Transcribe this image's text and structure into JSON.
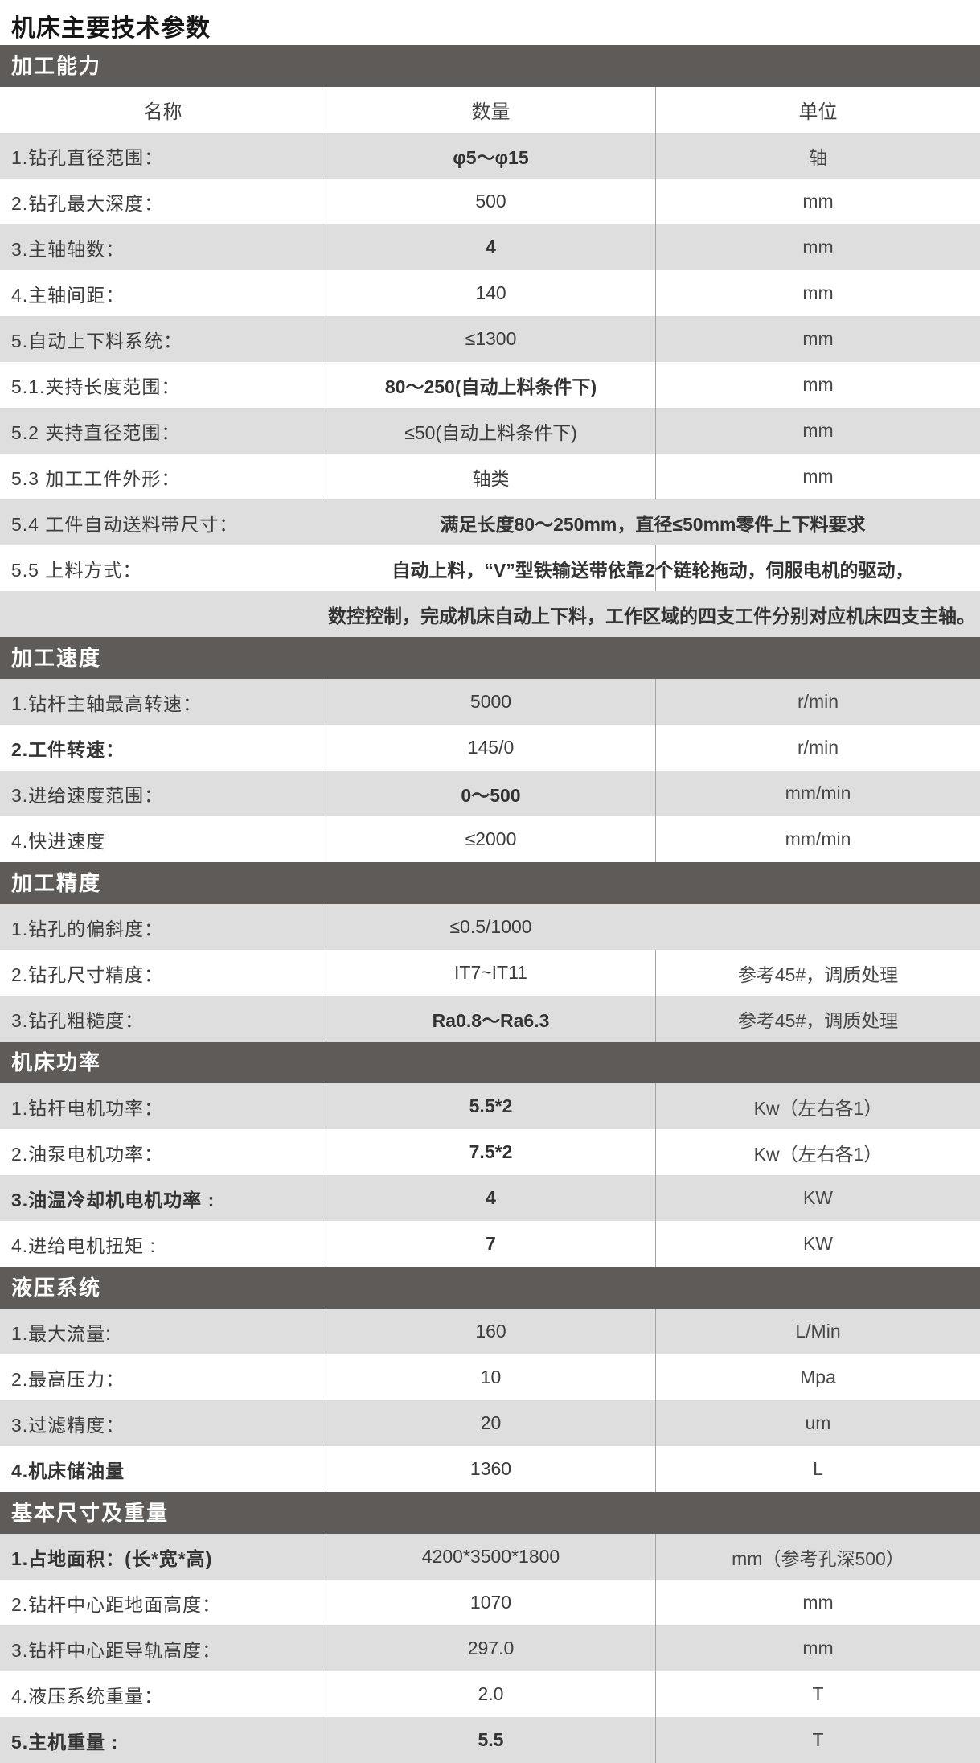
{
  "title": "机床主要技术参数",
  "colors": {
    "section_bar": "#5f5b58",
    "stripe": "#dedede",
    "divider": "#a3a3a3"
  },
  "table": {
    "columns": [
      "名称",
      "数量",
      "单位"
    ],
    "sections": [
      {
        "heading": "加工能力",
        "rows": [
          {
            "label": "1.钻孔直径范围：",
            "value": "φ5～φ15",
            "unit": "轴",
            "vb": true
          },
          {
            "label": "2.钻孔最大深度：",
            "value": "500",
            "unit": "mm"
          },
          {
            "label": "3.主轴轴数：",
            "value": "4",
            "unit": "mm",
            "vb": true
          },
          {
            "label": "4.主轴间距：",
            "value": "140",
            "unit": "mm"
          },
          {
            "label": "5.自动上下料系统：",
            "value": "≤1300",
            "unit": "mm"
          },
          {
            "label": "5.1.夹持长度范围：",
            "value": "80～250(自动上料条件下)",
            "unit": "mm",
            "vb": true
          },
          {
            "label": "5.2 夹持直径范围：",
            "value": "≤50(自动上料条件下)",
            "unit": "mm"
          },
          {
            "label": "5.3 加工工件外形：",
            "value": "轴类",
            "unit": "mm"
          },
          {
            "label": "5.4 工件自动送料带尺寸：",
            "value": "满足长度80～250mm，直径≤50mm零件上下料要求",
            "span": true,
            "nodiv": true,
            "vb": true
          },
          {
            "label": "5.5 上料方式：",
            "value": "自动上料，“V”型铁输送带依靠2个链轮拖动，伺服电机的驱动，",
            "span": true,
            "innerline": true,
            "vb": true
          },
          {
            "value": "数控控制，完成机床自动上下料，工作区域的四支工件分别对应机床四支主轴。",
            "fullspan": true,
            "vb": true
          }
        ]
      },
      {
        "heading": "加工速度",
        "rows": [
          {
            "label": "1.钻杆主轴最高转速：",
            "value": "5000",
            "unit": "r/min"
          },
          {
            "label": "2.工件转速：",
            "value": "145/0",
            "unit": "r/min",
            "lb": true
          },
          {
            "label": "3.进给速度范围：",
            "value": "0～500",
            "unit": "mm/min",
            "vb": true
          },
          {
            "label": "4.快进速度",
            "value": "≤2000",
            "unit": "mm/min"
          }
        ]
      },
      {
        "heading": "加工精度",
        "rows": [
          {
            "label": "1.钻孔的偏斜度：",
            "value": "≤0.5/1000",
            "unit": "",
            "nodiv": true
          },
          {
            "label": "2.钻孔尺寸精度：",
            "value": "IT7~IT11",
            "unit": "参考45#，调质处理"
          },
          {
            "label": "3.钻孔粗糙度：",
            "value": "Ra0.8～Ra6.3",
            "unit": "参考45#，调质处理",
            "vb": true
          }
        ]
      },
      {
        "heading": "机床功率",
        "rows": [
          {
            "label": "1.钻杆电机功率：",
            "value": "5.5*2",
            "unit": "Kw（左右各1）",
            "vb": true
          },
          {
            "label": "2.油泵电机功率：",
            "value": "7.5*2",
            "unit": "Kw（左右各1）",
            "vb": true
          },
          {
            "label": "3.油温冷却机电机功率 :",
            "value": "4",
            "unit": "KW",
            "lb": true,
            "vb": true
          },
          {
            "label": "4.进给电机扭矩 :",
            "value": "7",
            "unit": "KW",
            "vb": true
          }
        ]
      },
      {
        "heading": "液压系统",
        "rows": [
          {
            "label": "1.最大流量:",
            "value": "160",
            "unit": "L/Min"
          },
          {
            "label": "2.最高压力：",
            "value": "10",
            "unit": "Mpa"
          },
          {
            "label": "3.过滤精度：",
            "value": "20",
            "unit": "um"
          },
          {
            "label": "4.机床储油量",
            "value": "1360",
            "unit": "L",
            "lb": true
          }
        ]
      },
      {
        "heading": "基本尺寸及重量",
        "rows": [
          {
            "label": "1.占地面积：(长*宽*高)",
            "value": "4200*3500*1800",
            "unit": "mm（参考孔深500）",
            "lb": true
          },
          {
            "label": "2.钻杆中心距地面高度：",
            "value": "1070",
            "unit": "mm"
          },
          {
            "label": "3.钻杆中心距导轨高度：",
            "value": "297.0",
            "unit": "mm"
          },
          {
            "label": "4.液压系统重量：",
            "value": "2.0",
            "unit": "T"
          },
          {
            "label": "5.主机重量 :",
            "value": "5.5",
            "unit": "T",
            "lb": true,
            "vb": true
          }
        ]
      }
    ]
  }
}
